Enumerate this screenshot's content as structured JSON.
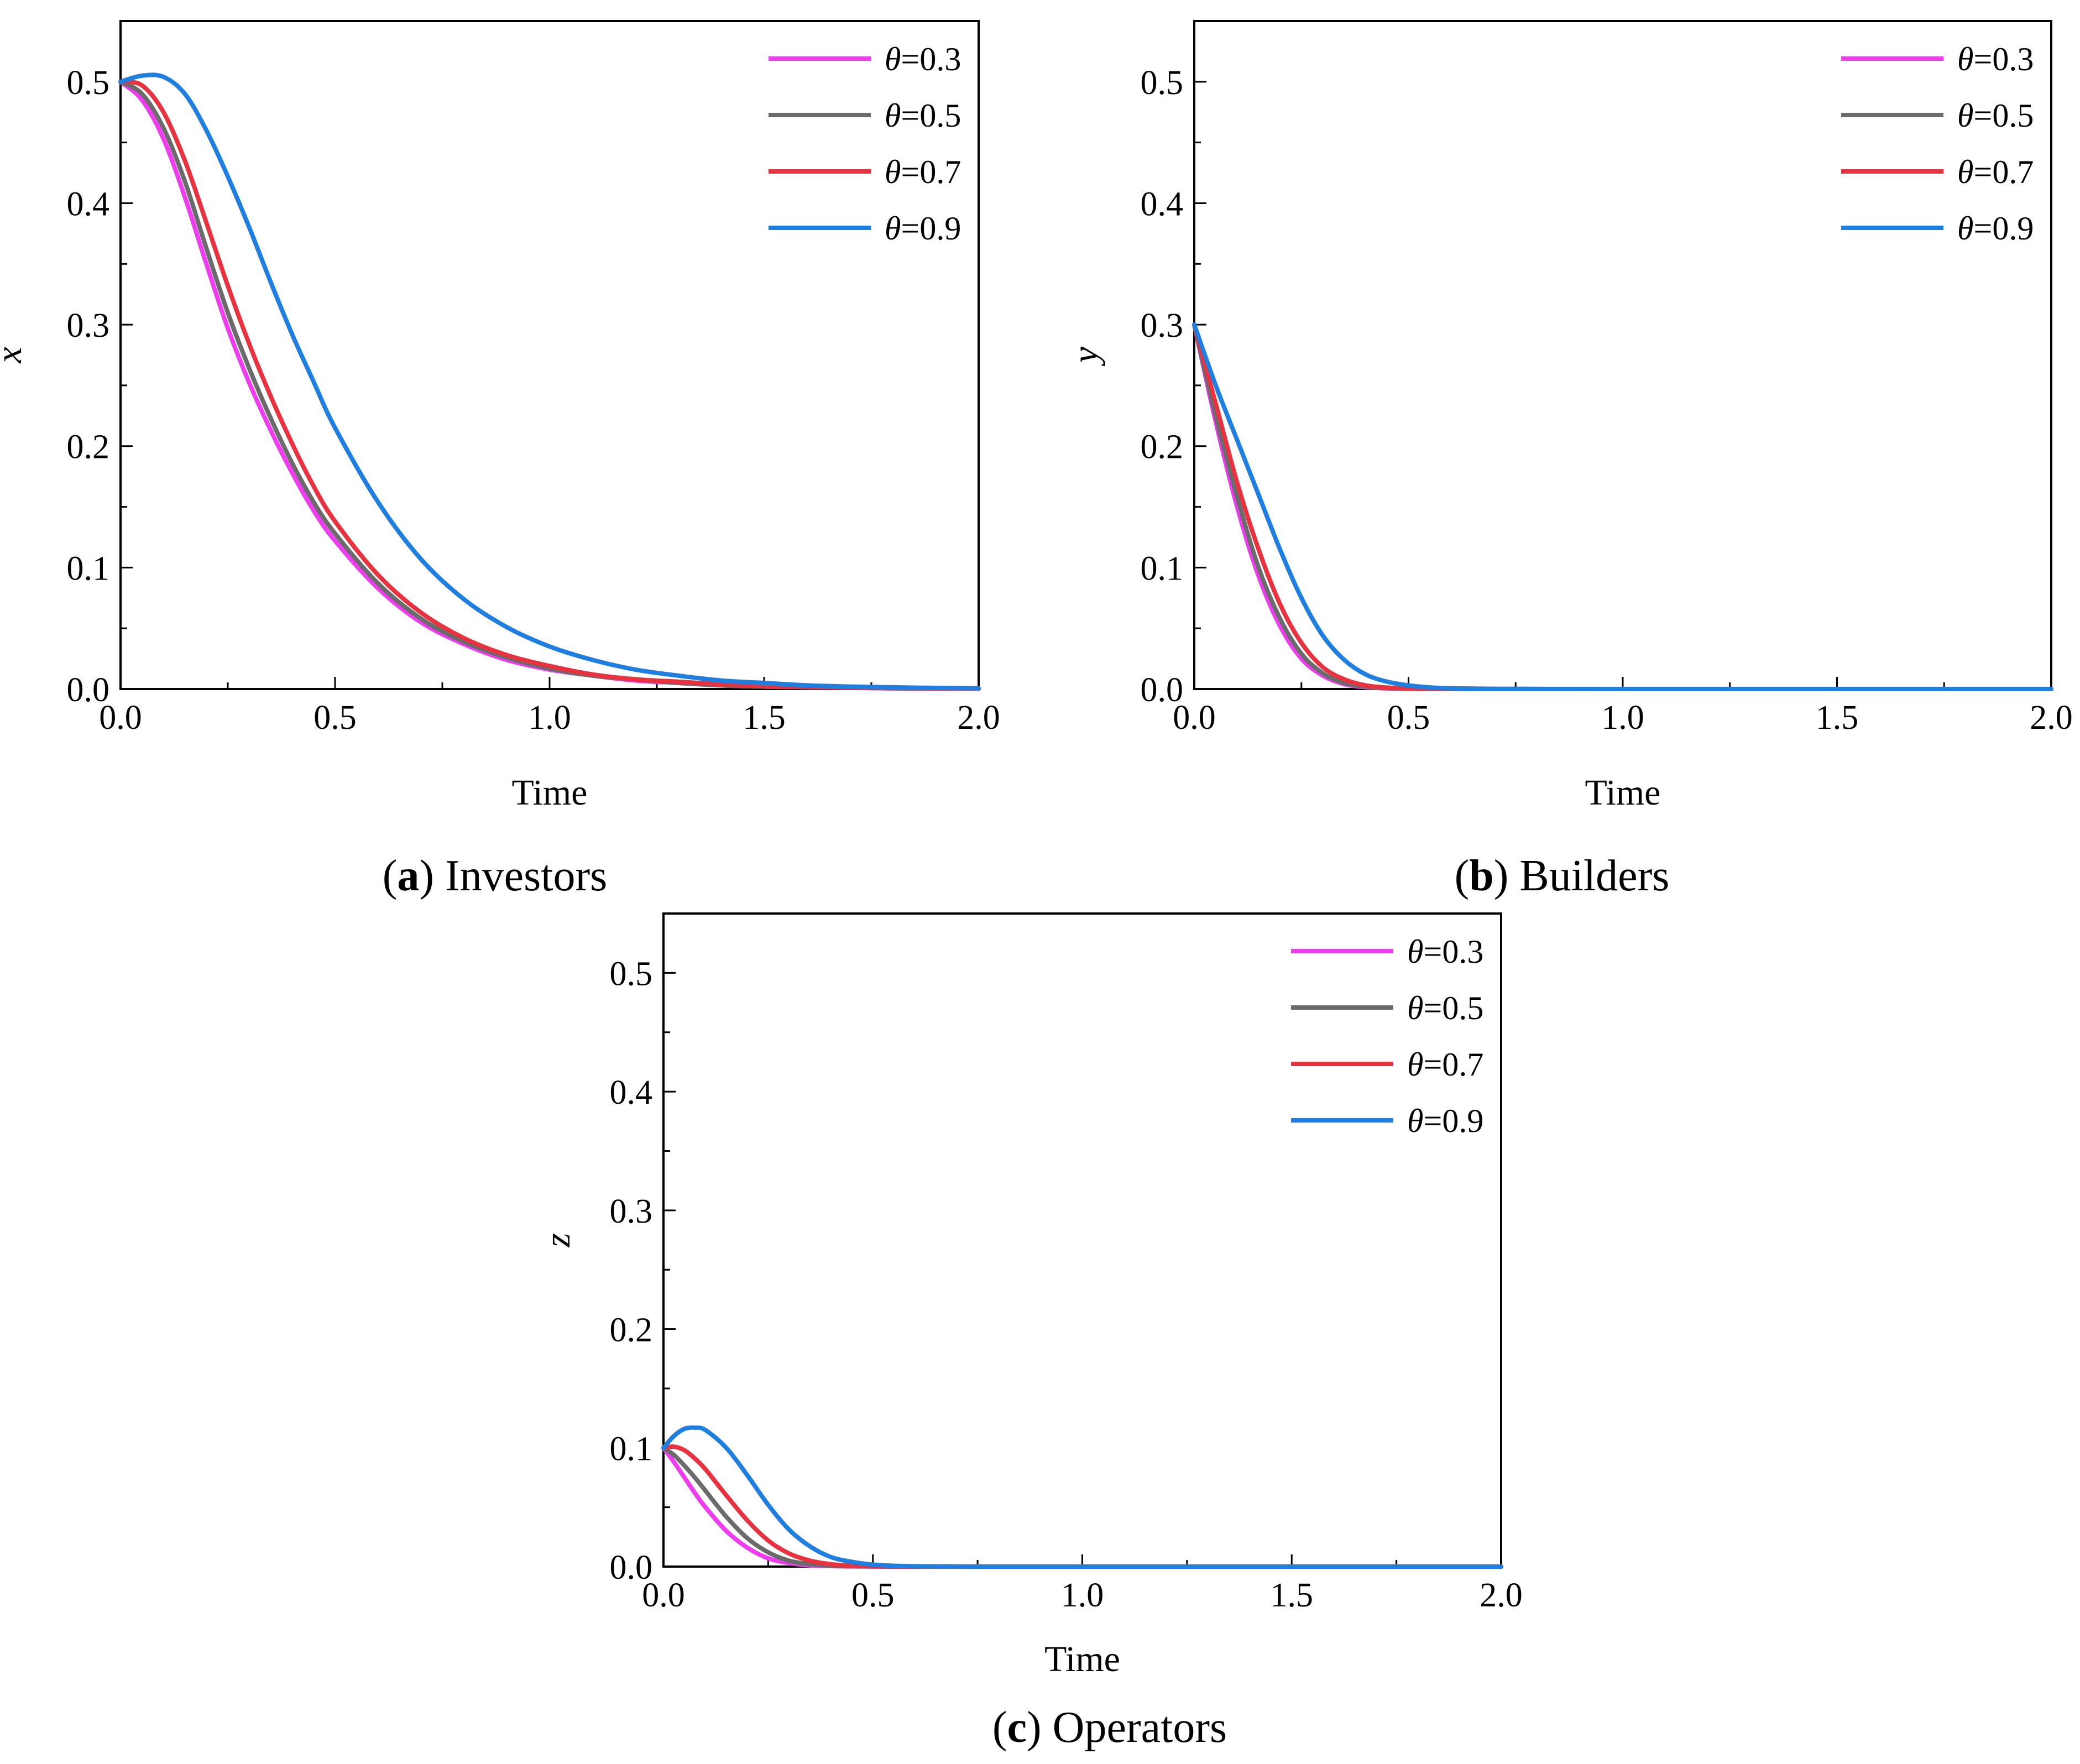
{
  "colors": {
    "theta_0_3": "#ee3cee",
    "theta_0_5": "#6b6b6b",
    "theta_0_7": "#e8323f",
    "theta_0_9": "#1e7fe0"
  },
  "legend_symbol": "θ",
  "chart_data": [
    {
      "id": "a",
      "type": "line",
      "title": "",
      "caption_letter": "a",
      "caption_text": "Investors",
      "xlabel": "Time",
      "ylabel": "x",
      "xlim": [
        0,
        2.0
      ],
      "ylim": [
        0,
        0.55
      ],
      "xticks": [
        "0.0",
        "0.5",
        "1.0",
        "1.5",
        "2.0"
      ],
      "yticks": [
        "0.0",
        "0.1",
        "0.2",
        "0.3",
        "0.4",
        "0.5"
      ],
      "legend_position": "top-right",
      "x": [
        0,
        0.05,
        0.1,
        0.15,
        0.2,
        0.25,
        0.3,
        0.35,
        0.4,
        0.45,
        0.5,
        0.6,
        0.7,
        0.8,
        0.9,
        1.0,
        1.1,
        1.2,
        1.3,
        1.4,
        1.5,
        1.6,
        1.7,
        1.8,
        1.9,
        2.0
      ],
      "series": [
        {
          "name": "=0.3",
          "color_key": "theta_0_3",
          "values": [
            0.5,
            0.485,
            0.453,
            0.405,
            0.35,
            0.297,
            0.252,
            0.213,
            0.178,
            0.147,
            0.122,
            0.083,
            0.055,
            0.037,
            0.024,
            0.016,
            0.011,
            0.007,
            0.005,
            0.003,
            0.002,
            0.0015,
            0.001,
            0.0006,
            0.0004,
            0.0003
          ]
        },
        {
          "name": "=0.5",
          "color_key": "theta_0_5",
          "values": [
            0.5,
            0.49,
            0.462,
            0.418,
            0.363,
            0.31,
            0.264,
            0.223,
            0.186,
            0.154,
            0.128,
            0.087,
            0.058,
            0.039,
            0.026,
            0.017,
            0.011,
            0.008,
            0.005,
            0.003,
            0.002,
            0.0015,
            0.001,
            0.0006,
            0.0004,
            0.0003
          ]
        },
        {
          "name": "=0.7",
          "color_key": "theta_0_7",
          "values": [
            0.5,
            0.497,
            0.475,
            0.435,
            0.384,
            0.332,
            0.284,
            0.241,
            0.202,
            0.167,
            0.138,
            0.094,
            0.063,
            0.042,
            0.028,
            0.019,
            0.012,
            0.008,
            0.006,
            0.004,
            0.0025,
            0.0017,
            0.0011,
            0.0007,
            0.0005,
            0.0003
          ]
        },
        {
          "name": "=0.9",
          "color_key": "theta_0_9",
          "values": [
            0.5,
            0.505,
            0.504,
            0.49,
            0.46,
            0.422,
            0.38,
            0.335,
            0.292,
            0.253,
            0.215,
            0.154,
            0.107,
            0.074,
            0.051,
            0.035,
            0.024,
            0.016,
            0.011,
            0.007,
            0.005,
            0.003,
            0.002,
            0.0014,
            0.0009,
            0.0006
          ]
        }
      ]
    },
    {
      "id": "b",
      "type": "line",
      "title": "",
      "caption_letter": "b",
      "caption_text": "Builders",
      "xlabel": "Time",
      "ylabel": "y",
      "xlim": [
        0,
        2.0
      ],
      "ylim": [
        0,
        0.55
      ],
      "xticks": [
        "0.0",
        "0.5",
        "1.0",
        "1.5",
        "2.0"
      ],
      "yticks": [
        "0.0",
        "0.1",
        "0.2",
        "0.3",
        "0.4",
        "0.5"
      ],
      "legend_position": "top-right",
      "x": [
        0,
        0.05,
        0.1,
        0.15,
        0.2,
        0.25,
        0.3,
        0.35,
        0.4,
        0.45,
        0.5,
        0.55,
        0.6,
        0.7,
        0.8,
        1.0,
        1.5,
        2.0
      ],
      "series": [
        {
          "name": "=0.3",
          "color_key": "theta_0_3",
          "values": [
            0.3,
            0.22,
            0.15,
            0.093,
            0.052,
            0.025,
            0.011,
            0.004,
            0.0015,
            0.0005,
            0.0002,
            0.0001,
            0,
            0,
            0,
            0,
            0,
            0
          ]
        },
        {
          "name": "=0.5",
          "color_key": "theta_0_5",
          "values": [
            0.3,
            0.225,
            0.158,
            0.1,
            0.058,
            0.029,
            0.013,
            0.005,
            0.002,
            0.0007,
            0.0003,
            0.0001,
            0,
            0,
            0,
            0,
            0,
            0
          ]
        },
        {
          "name": "=0.7",
          "color_key": "theta_0_7",
          "values": [
            0.3,
            0.235,
            0.17,
            0.115,
            0.07,
            0.038,
            0.018,
            0.008,
            0.003,
            0.0012,
            0.0005,
            0.0002,
            0.0001,
            0,
            0,
            0,
            0,
            0
          ]
        },
        {
          "name": "=0.9",
          "color_key": "theta_0_9",
          "values": [
            0.3,
            0.25,
            0.205,
            0.16,
            0.115,
            0.075,
            0.044,
            0.024,
            0.012,
            0.006,
            0.003,
            0.0013,
            0.0006,
            0.0002,
            0.0001,
            0,
            0,
            0
          ]
        }
      ]
    },
    {
      "id": "c",
      "type": "line",
      "title": "",
      "caption_letter": "c",
      "caption_text": "Operators",
      "xlabel": "Time",
      "ylabel": "z",
      "xlim": [
        0,
        2.0
      ],
      "ylim": [
        0,
        0.55
      ],
      "xticks": [
        "0.0",
        "0.5",
        "1.0",
        "1.5",
        "2.0"
      ],
      "yticks": [
        "0.0",
        "0.1",
        "0.2",
        "0.3",
        "0.4",
        "0.5"
      ],
      "legend_position": "top-right",
      "x": [
        0,
        0.025,
        0.05,
        0.075,
        0.1,
        0.15,
        0.2,
        0.25,
        0.3,
        0.35,
        0.4,
        0.45,
        0.5,
        0.55,
        0.6,
        0.7,
        0.8,
        1.0,
        1.5,
        2.0
      ],
      "series": [
        {
          "name": "=0.3",
          "color_key": "theta_0_3",
          "values": [
            0.1,
            0.088,
            0.075,
            0.062,
            0.05,
            0.03,
            0.016,
            0.007,
            0.003,
            0.001,
            0.0004,
            0.0002,
            0.0001,
            0,
            0,
            0,
            0,
            0,
            0,
            0
          ]
        },
        {
          "name": "=0.5",
          "color_key": "theta_0_5",
          "values": [
            0.1,
            0.094,
            0.085,
            0.075,
            0.064,
            0.042,
            0.024,
            0.012,
            0.005,
            0.002,
            0.0008,
            0.0003,
            0.0001,
            0,
            0,
            0,
            0,
            0,
            0,
            0
          ]
        },
        {
          "name": "=0.7",
          "color_key": "theta_0_7",
          "values": [
            0.1,
            0.101,
            0.098,
            0.091,
            0.082,
            0.06,
            0.039,
            0.022,
            0.011,
            0.005,
            0.002,
            0.0008,
            0.0003,
            0.0001,
            0,
            0,
            0,
            0,
            0,
            0
          ]
        },
        {
          "name": "=0.9",
          "color_key": "theta_0_9",
          "values": [
            0.1,
            0.11,
            0.116,
            0.117,
            0.115,
            0.1,
            0.077,
            0.052,
            0.031,
            0.017,
            0.008,
            0.004,
            0.0017,
            0.0007,
            0.0003,
            0.0001,
            0,
            0,
            0,
            0
          ]
        }
      ]
    }
  ]
}
